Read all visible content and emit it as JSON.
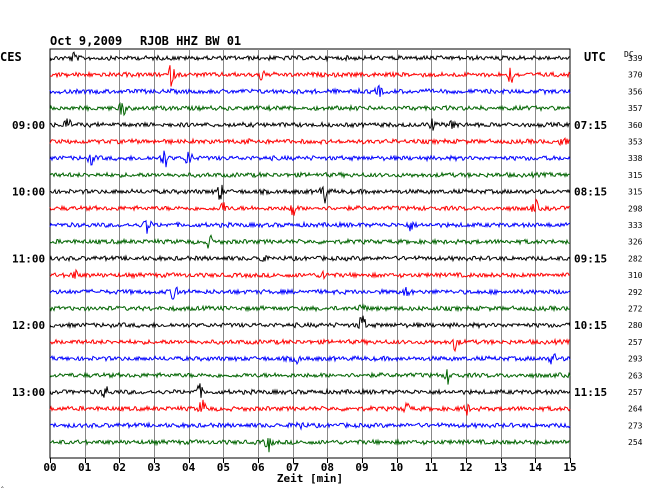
{
  "header": {
    "date": "Oct 9,2009",
    "station": "RJOB HHZ BW 01",
    "left_zone": "CES",
    "right_zone": "UTC",
    "dc_label": "DC"
  },
  "chart_data": {
    "type": "line",
    "title": "Oct 9,2009   RJOB HHZ BW 01",
    "xlabel": "Zeit [min]",
    "ylabel": "",
    "xlim": [
      0,
      15
    ],
    "x_ticks": [
      "00",
      "01",
      "02",
      "03",
      "04",
      "05",
      "06",
      "07",
      "08",
      "09",
      "10",
      "11",
      "12",
      "13",
      "14",
      "15"
    ],
    "trace_colors": [
      "#000000",
      "#ff0000",
      "#0000ff",
      "#006400"
    ],
    "dc_values": [
      339,
      370,
      356,
      357,
      360,
      353,
      338,
      315,
      315,
      298,
      333,
      326,
      282,
      310,
      292,
      272,
      280,
      257,
      293,
      263,
      257,
      264,
      273,
      254
    ],
    "left_hour_labels": [
      {
        "row": 4,
        "label": "09:00"
      },
      {
        "row": 8,
        "label": "10:00"
      },
      {
        "row": 12,
        "label": "11:00"
      },
      {
        "row": 16,
        "label": "12:00"
      },
      {
        "row": 20,
        "label": "13:00"
      }
    ],
    "right_hour_labels": [
      {
        "row": 4,
        "label": "07:15"
      },
      {
        "row": 8,
        "label": "08:15"
      },
      {
        "row": 12,
        "label": "09:15"
      },
      {
        "row": 16,
        "label": "10:15"
      },
      {
        "row": 20,
        "label": "11:15"
      }
    ],
    "events": [
      {
        "row": 0,
        "minute": 0.7,
        "amp": 5
      },
      {
        "row": 1,
        "minute": 3.5,
        "amp": 10
      },
      {
        "row": 1,
        "minute": 6.1,
        "amp": 5
      },
      {
        "row": 1,
        "minute": 13.3,
        "amp": 9
      },
      {
        "row": 2,
        "minute": 9.5,
        "amp": 5
      },
      {
        "row": 3,
        "minute": 2.1,
        "amp": 8
      },
      {
        "row": 4,
        "minute": 0.5,
        "amp": 7
      },
      {
        "row": 4,
        "minute": 11.0,
        "amp": 6
      },
      {
        "row": 4,
        "minute": 11.6,
        "amp": 8
      },
      {
        "row": 5,
        "minute": 5.8,
        "amp": 5
      },
      {
        "row": 5,
        "minute": 14.8,
        "amp": 6
      },
      {
        "row": 6,
        "minute": 1.2,
        "amp": 6
      },
      {
        "row": 6,
        "minute": 3.3,
        "amp": 10
      },
      {
        "row": 6,
        "minute": 4.0,
        "amp": 9
      },
      {
        "row": 8,
        "minute": 4.9,
        "amp": 9
      },
      {
        "row": 8,
        "minute": 7.9,
        "amp": 13
      },
      {
        "row": 9,
        "minute": 5.0,
        "amp": 6
      },
      {
        "row": 9,
        "minute": 7.0,
        "amp": 8
      },
      {
        "row": 9,
        "minute": 14.0,
        "amp": 7
      },
      {
        "row": 10,
        "minute": 2.8,
        "amp": 10
      },
      {
        "row": 10,
        "minute": 10.4,
        "amp": 5
      },
      {
        "row": 11,
        "minute": 4.6,
        "amp": 6
      },
      {
        "row": 12,
        "minute": 6.1,
        "amp": 5
      },
      {
        "row": 13,
        "minute": 0.7,
        "amp": 6
      },
      {
        "row": 13,
        "minute": 7.9,
        "amp": 5
      },
      {
        "row": 14,
        "minute": 3.6,
        "amp": 12
      },
      {
        "row": 14,
        "minute": 10.3,
        "amp": 6
      },
      {
        "row": 15,
        "minute": 9.0,
        "amp": 5
      },
      {
        "row": 16,
        "minute": 9.0,
        "amp": 12
      },
      {
        "row": 17,
        "minute": 11.7,
        "amp": 8
      },
      {
        "row": 18,
        "minute": 7.1,
        "amp": 5
      },
      {
        "row": 18,
        "minute": 14.5,
        "amp": 6
      },
      {
        "row": 19,
        "minute": 11.5,
        "amp": 8
      },
      {
        "row": 20,
        "minute": 1.6,
        "amp": 7
      },
      {
        "row": 20,
        "minute": 4.3,
        "amp": 7
      },
      {
        "row": 21,
        "minute": 4.4,
        "amp": 11
      },
      {
        "row": 21,
        "minute": 10.3,
        "amp": 5
      },
      {
        "row": 21,
        "minute": 12.0,
        "amp": 6
      },
      {
        "row": 22,
        "minute": 7.2,
        "amp": 5
      },
      {
        "row": 23,
        "minute": 6.3,
        "amp": 9
      }
    ],
    "grid": true
  },
  "corner_mark": "‸"
}
